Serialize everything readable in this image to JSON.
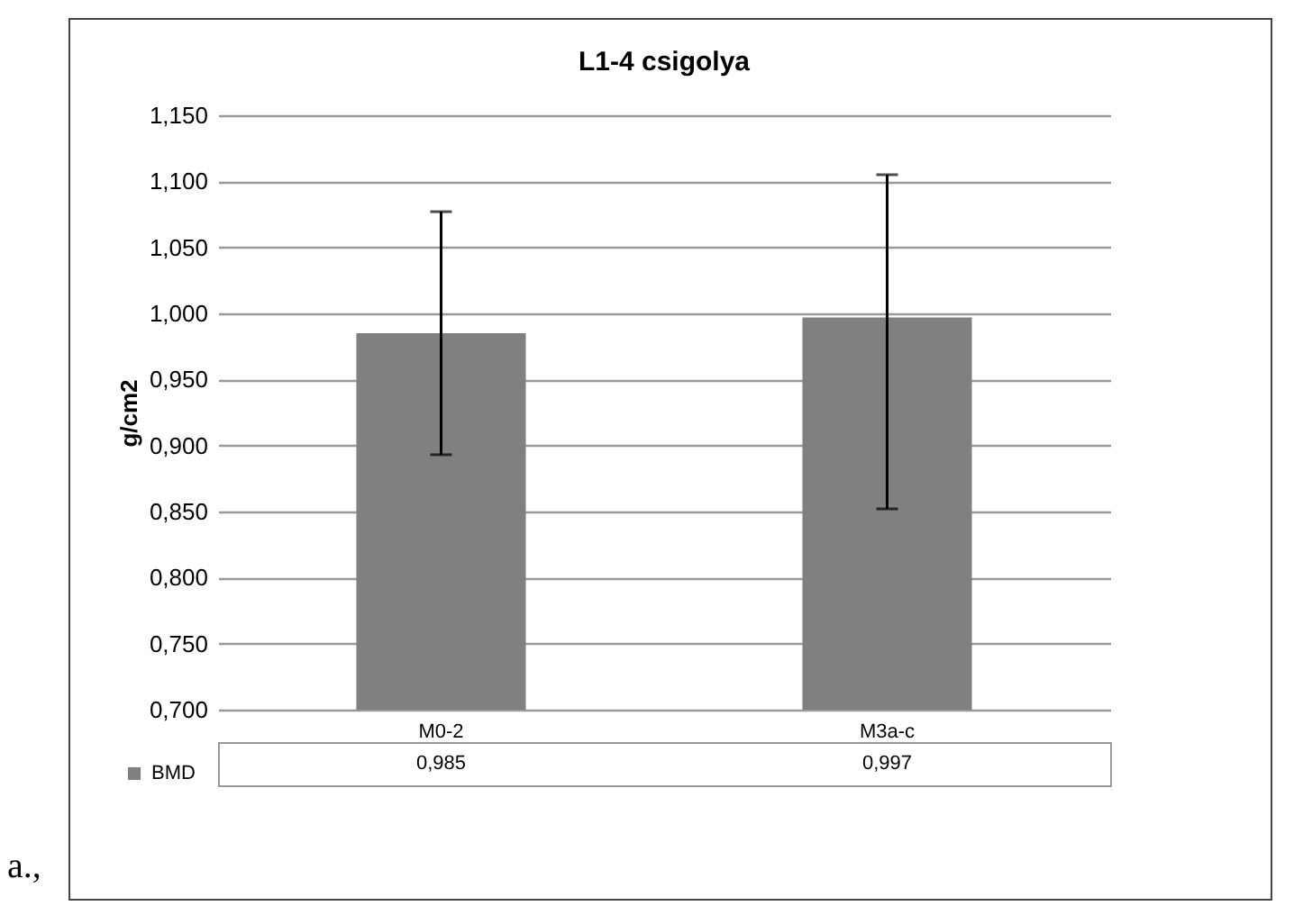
{
  "chart_data": {
    "type": "bar",
    "title": "L1-4 csigolya",
    "ylabel": "g/cm2",
    "categories": [
      "M0-2",
      "M3a-c"
    ],
    "series": [
      {
        "name": "BMD",
        "color": "#808080",
        "values": [
          0.985,
          0.997
        ],
        "errors": [
          [
            0.893,
            1.077
          ],
          [
            0.852,
            1.105
          ]
        ],
        "value_labels": [
          "0,985",
          "0,997"
        ]
      }
    ],
    "ylim": [
      0.7,
      1.15
    ],
    "yticks": [
      {
        "value": 0.7,
        "label": "0,700"
      },
      {
        "value": 0.75,
        "label": "0,750"
      },
      {
        "value": 0.8,
        "label": "0,800"
      },
      {
        "value": 0.85,
        "label": "0,850"
      },
      {
        "value": 0.9,
        "label": "0,900"
      },
      {
        "value": 0.95,
        "label": "0,950"
      },
      {
        "value": 1.0,
        "label": "1,000"
      },
      {
        "value": 1.05,
        "label": "1,050"
      },
      {
        "value": 1.1,
        "label": "1,100"
      },
      {
        "value": 1.15,
        "label": "1,150"
      }
    ],
    "grid": "y",
    "legend": "bottom left",
    "annotations": [
      "a.,"
    ]
  }
}
